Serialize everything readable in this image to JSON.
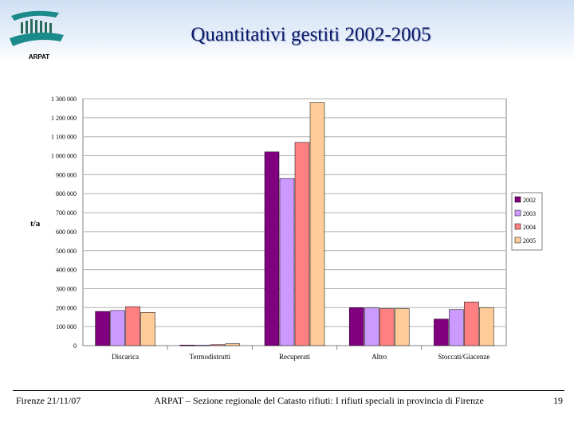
{
  "slide": {
    "title": "Quantitativi gestiti 2002-2005",
    "logo_text": "ARPAT",
    "footer_left": "Firenze 21/11/07",
    "footer_center": "ARPAT – Sezione regionale del Catasto rifiuti: I rifiuti speciali in provincia di Firenze",
    "page_number": "19"
  },
  "colors": {
    "2002": "#800080",
    "2003": "#cc99ff",
    "2004": "#ff8080",
    "2005": "#ffcc99",
    "title": "#0a1a6a",
    "logo_teal": "#1a8a8a"
  },
  "chart_data": {
    "type": "bar",
    "title": "",
    "xlabel": "",
    "ylabel": "t/a",
    "ylim": [
      0,
      1300000
    ],
    "yticks": [
      0,
      100000,
      200000,
      300000,
      400000,
      500000,
      600000,
      700000,
      800000,
      900000,
      1000000,
      1100000,
      1200000,
      1300000
    ],
    "ytick_labels": [
      "0",
      "100 000",
      "200 000",
      "300 000",
      "400 000",
      "500 000",
      "600 000",
      "700 000",
      "800 000",
      "900 000",
      "1 000 000",
      "1 100 000",
      "1 200 000",
      "1 300 000"
    ],
    "grid": true,
    "legend": "right",
    "categories": [
      "Discarica",
      "Termodistrutti",
      "Recuperati",
      "Altro",
      "Stoccati/Giacenze"
    ],
    "series": [
      {
        "name": "2002",
        "values": [
          180000,
          3000,
          1020000,
          200000,
          140000
        ]
      },
      {
        "name": "2003",
        "values": [
          185000,
          3000,
          880000,
          198000,
          190000
        ]
      },
      {
        "name": "2004",
        "values": [
          205000,
          5000,
          1070000,
          195000,
          230000
        ]
      },
      {
        "name": "2005",
        "values": [
          175000,
          10000,
          1280000,
          195000,
          200000
        ]
      }
    ]
  }
}
